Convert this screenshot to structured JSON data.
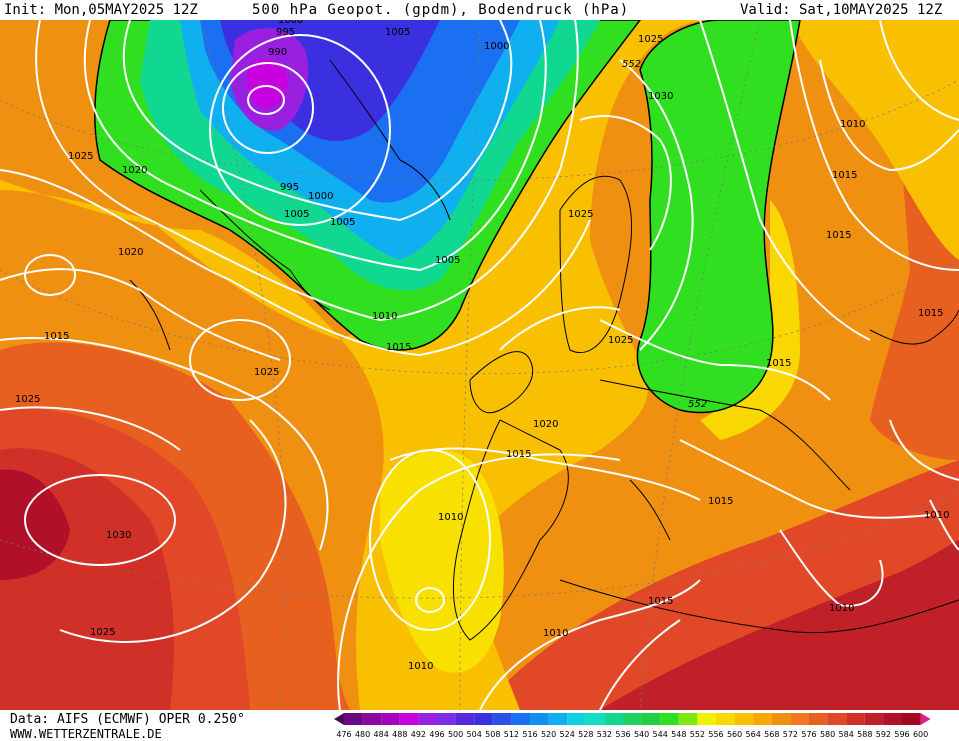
{
  "header": {
    "init": "Init: Mon,05MAY2025 12Z",
    "title": "500 hPa Geopot. (gpdm), Bodendruck (hPa)",
    "valid": "Valid: Sat,10MAY2025 12Z"
  },
  "footer": {
    "source": "Data: AIFS (ECMWF) OPER 0.250°",
    "website": "WWW.WETTERZENTRALE.DE"
  },
  "scale": {
    "values": [
      "476",
      "480",
      "484",
      "488",
      "492",
      "496",
      "500",
      "504",
      "508",
      "512",
      "516",
      "520",
      "524",
      "528",
      "532",
      "536",
      "540",
      "544",
      "548",
      "552",
      "556",
      "560",
      "564",
      "568",
      "572",
      "576",
      "580",
      "584",
      "588",
      "592",
      "596",
      "600"
    ],
    "colors": [
      "#4a0a5c",
      "#6a0a80",
      "#8a0aa0",
      "#a800c0",
      "#c800e0",
      "#9a20e0",
      "#7a30e8",
      "#5a28e0",
      "#3a30e0",
      "#2a50e8",
      "#1a70f0",
      "#1090f0",
      "#10b0f0",
      "#10d0e0",
      "#10e0c0",
      "#10d890",
      "#20d060",
      "#20d040",
      "#30e020",
      "#80e810",
      "#f0f000",
      "#f8d800",
      "#f8c000",
      "#f8a800",
      "#f09010",
      "#f07820",
      "#e86020",
      "#e04828",
      "#d03028",
      "#c02028",
      "#b01028",
      "#a00820",
      "#e0208a"
    ]
  },
  "isobars": {
    "l995a": "995",
    "l990": "990",
    "l1000top": "1000",
    "l1005top": "1005",
    "l1000b": "1000",
    "l1025tr": "1025",
    "l1030n": "1030",
    "l1010ne": "1010",
    "l1015ne": "1015",
    "l1015e": "1015",
    "l1025w": "1025",
    "l1020w": "1020",
    "l995b": "995",
    "l1000c": "1000",
    "l1005c": "1005",
    "l1005d": "1005",
    "l1025sc": "1025",
    "l1020x": "1020",
    "l1005e": "1005",
    "l1010a": "1010",
    "l1015a": "1015",
    "l1025nw": "1025",
    "l1015w": "1015",
    "l1025sw": "1025",
    "l1025mid": "1025",
    "l1030sw": "1030",
    "l1020c": "1020",
    "l1015c": "1015",
    "l1010c": "1010",
    "l1025b": "1025",
    "l1015cz": "1015",
    "l1015ee": "1015",
    "l1015me": "1015",
    "l1010me": "1010",
    "l1010ea": "1010",
    "l1015se": "1015",
    "l1010mo": "1010",
    "l1010sp": "1010",
    "g552a": "552",
    "g552b": "552"
  }
}
